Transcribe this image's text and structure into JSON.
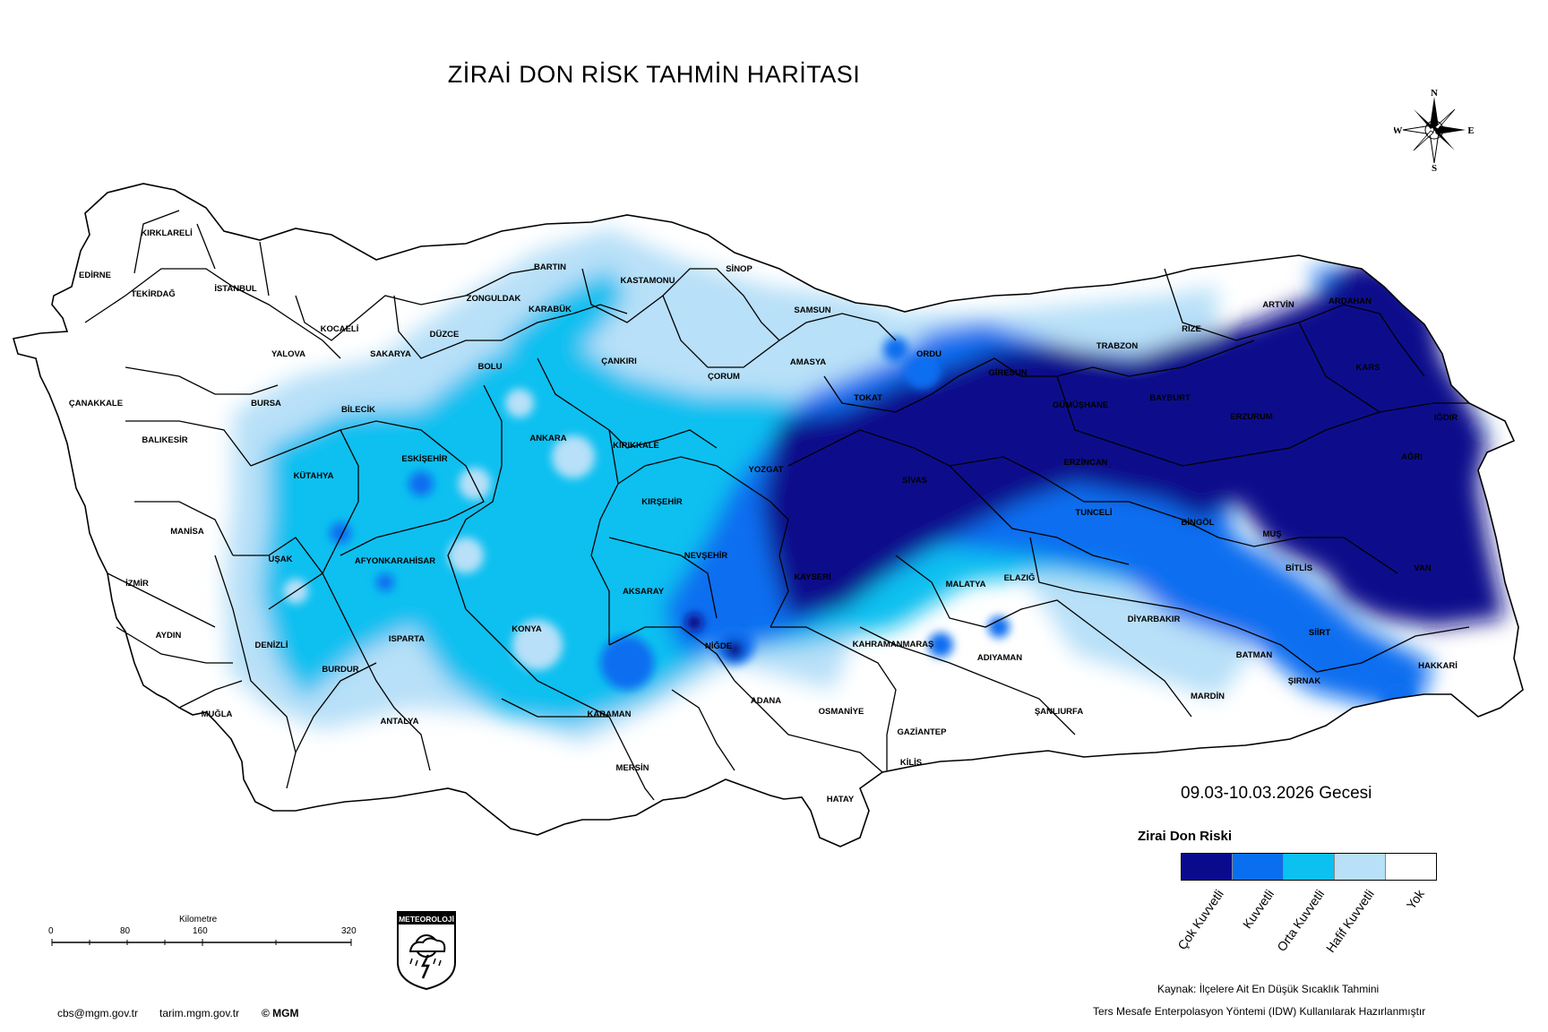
{
  "map": {
    "title": "ZİRAİ DON RİSK TAHMİN HARİTASI",
    "date_label": "09.03-10.03.2026 Gecesi"
  },
  "compass": {
    "n": "N",
    "s": "S",
    "e": "E",
    "w": "W"
  },
  "legend": {
    "title": "Zirai Don Riski",
    "items": [
      {
        "label": "Çok Kuvvetli",
        "color": "#0a0a8c"
      },
      {
        "label": "Kuvvetli",
        "color": "#0a6ef0"
      },
      {
        "label": "Orta Kuvvetli",
        "color": "#0cc0f0"
      },
      {
        "label": "Hafif Kuvvetli",
        "color": "#b8e0f8"
      },
      {
        "label": "Yok",
        "color": "#ffffff"
      }
    ]
  },
  "scale_bar": {
    "title": "Kilometre",
    "ticks": [
      "0",
      "80",
      "160",
      "320"
    ]
  },
  "logo": {
    "text": "METEOROLOJİ"
  },
  "source": {
    "line1": "Kaynak: İlçelere Ait En Düşük Sıcaklık Tahmini",
    "line2": "Ters Mesafe Enterpolasyon Yöntemi (IDW) Kullanılarak Hazırlanmıştır"
  },
  "footer": {
    "email": "cbs@mgm.gov.tr",
    "site": "tarim.mgm.gov.tr",
    "copyright": "© MGM"
  },
  "provinces": [
    "KIRKLARELİ",
    "EDİRNE",
    "TEKİRDAĞ",
    "İSTANBUL",
    "KOCAELİ",
    "YALOVA",
    "SAKARYA",
    "ÇANAKKALE",
    "BALIKESİR",
    "BURSA",
    "BİLECİK",
    "DÜZCE",
    "ZONGULDAK",
    "BARTIN",
    "KARABÜK",
    "KASTAMONU",
    "SİNOP",
    "SAMSUN",
    "BOLU",
    "ÇANKIRI",
    "ÇORUM",
    "AMASYA",
    "ORDU",
    "GİRESUN",
    "TRABZON",
    "RİZE",
    "ARTVİN",
    "ARDAHAN",
    "KARS",
    "IĞDIR",
    "AĞRI",
    "ERZURUM",
    "BAYBURT",
    "GÜMÜŞHANE",
    "TOKAT",
    "SİVAS",
    "ERZİNCAN",
    "TUNCELİ",
    "BİNGÖL",
    "MUŞ",
    "BİTLİS",
    "VAN",
    "HAKKARİ",
    "ŞIRNAK",
    "SİİRT",
    "BATMAN",
    "MARDİN",
    "DİYARBAKIR",
    "ELAZIĞ",
    "MALATYA",
    "ADIYAMAN",
    "ŞANLIURFA",
    "GAZİANTEP",
    "KİLİS",
    "HATAY",
    "OSMANİYE",
    "ADANA",
    "KAHRAMANMARAŞ",
    "KAYSERİ",
    "YOZGAT",
    "KIRIKKALE",
    "ANKARA",
    "KIRŞEHİR",
    "NEVŞEHİR",
    "AKSARAY",
    "NİĞDE",
    "KONYA",
    "KARAMAN",
    "MERSİN",
    "ANTALYA",
    "ISPARTA",
    "BURDUR",
    "AFYONKARAHİSAR",
    "ESKİŞEHİR",
    "KÜTAHYA",
    "UŞAK",
    "MANİSA",
    "İZMİR",
    "AYDIN",
    "DENİZLİ",
    "MUĞLA"
  ]
}
